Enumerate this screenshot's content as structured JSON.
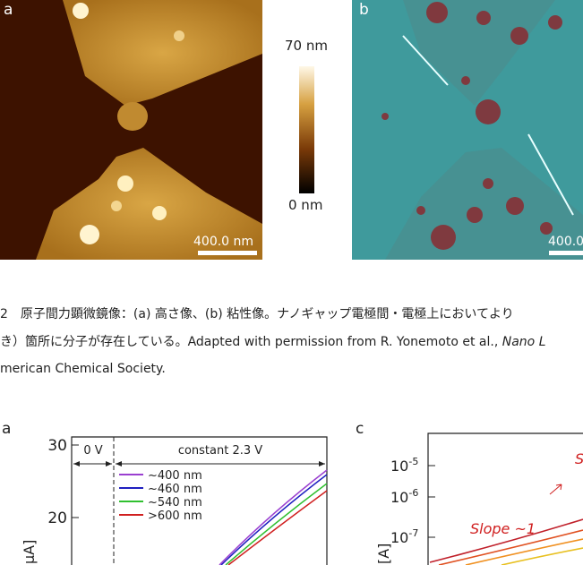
{
  "figure_top": {
    "panel_a": {
      "label": "a",
      "scalebar": "400.0 nm"
    },
    "colorbar": {
      "max_label": "70 nm",
      "min_label": "0 nm"
    },
    "panel_b": {
      "label": "b",
      "scalebar": "400.0"
    }
  },
  "caption": {
    "line1": "2　原子間力顕微鏡像：(a) 高さ像、(b) 粘性像。ナノギャップ電極間・電極上においてより",
    "line2": {
      "text": "き）箇所に分子が存在している。Adapted with permission from R. Yonemoto et al., ",
      "italic": "Nano L"
    },
    "line3": "merican Chemical Society."
  },
  "figure_bottom": {
    "panel_a": {
      "label": "a",
      "y_axis_label": "μA]",
      "yticks": [
        "30",
        "20"
      ],
      "phase1": "0 V",
      "phase2": "constant 2.3 V",
      "legend": [
        "~400 nm",
        "~460 nm",
        "~540 nm",
        ">600 nm"
      ]
    },
    "panel_c": {
      "label": "c",
      "y_axis_label": "[A]",
      "yticks": [
        {
          "base": "10",
          "exp": "-5"
        },
        {
          "base": "10",
          "exp": "-6"
        },
        {
          "base": "10",
          "exp": "-7"
        }
      ],
      "annotation": "Slope ~1",
      "annotation_partial": "S"
    }
  }
}
